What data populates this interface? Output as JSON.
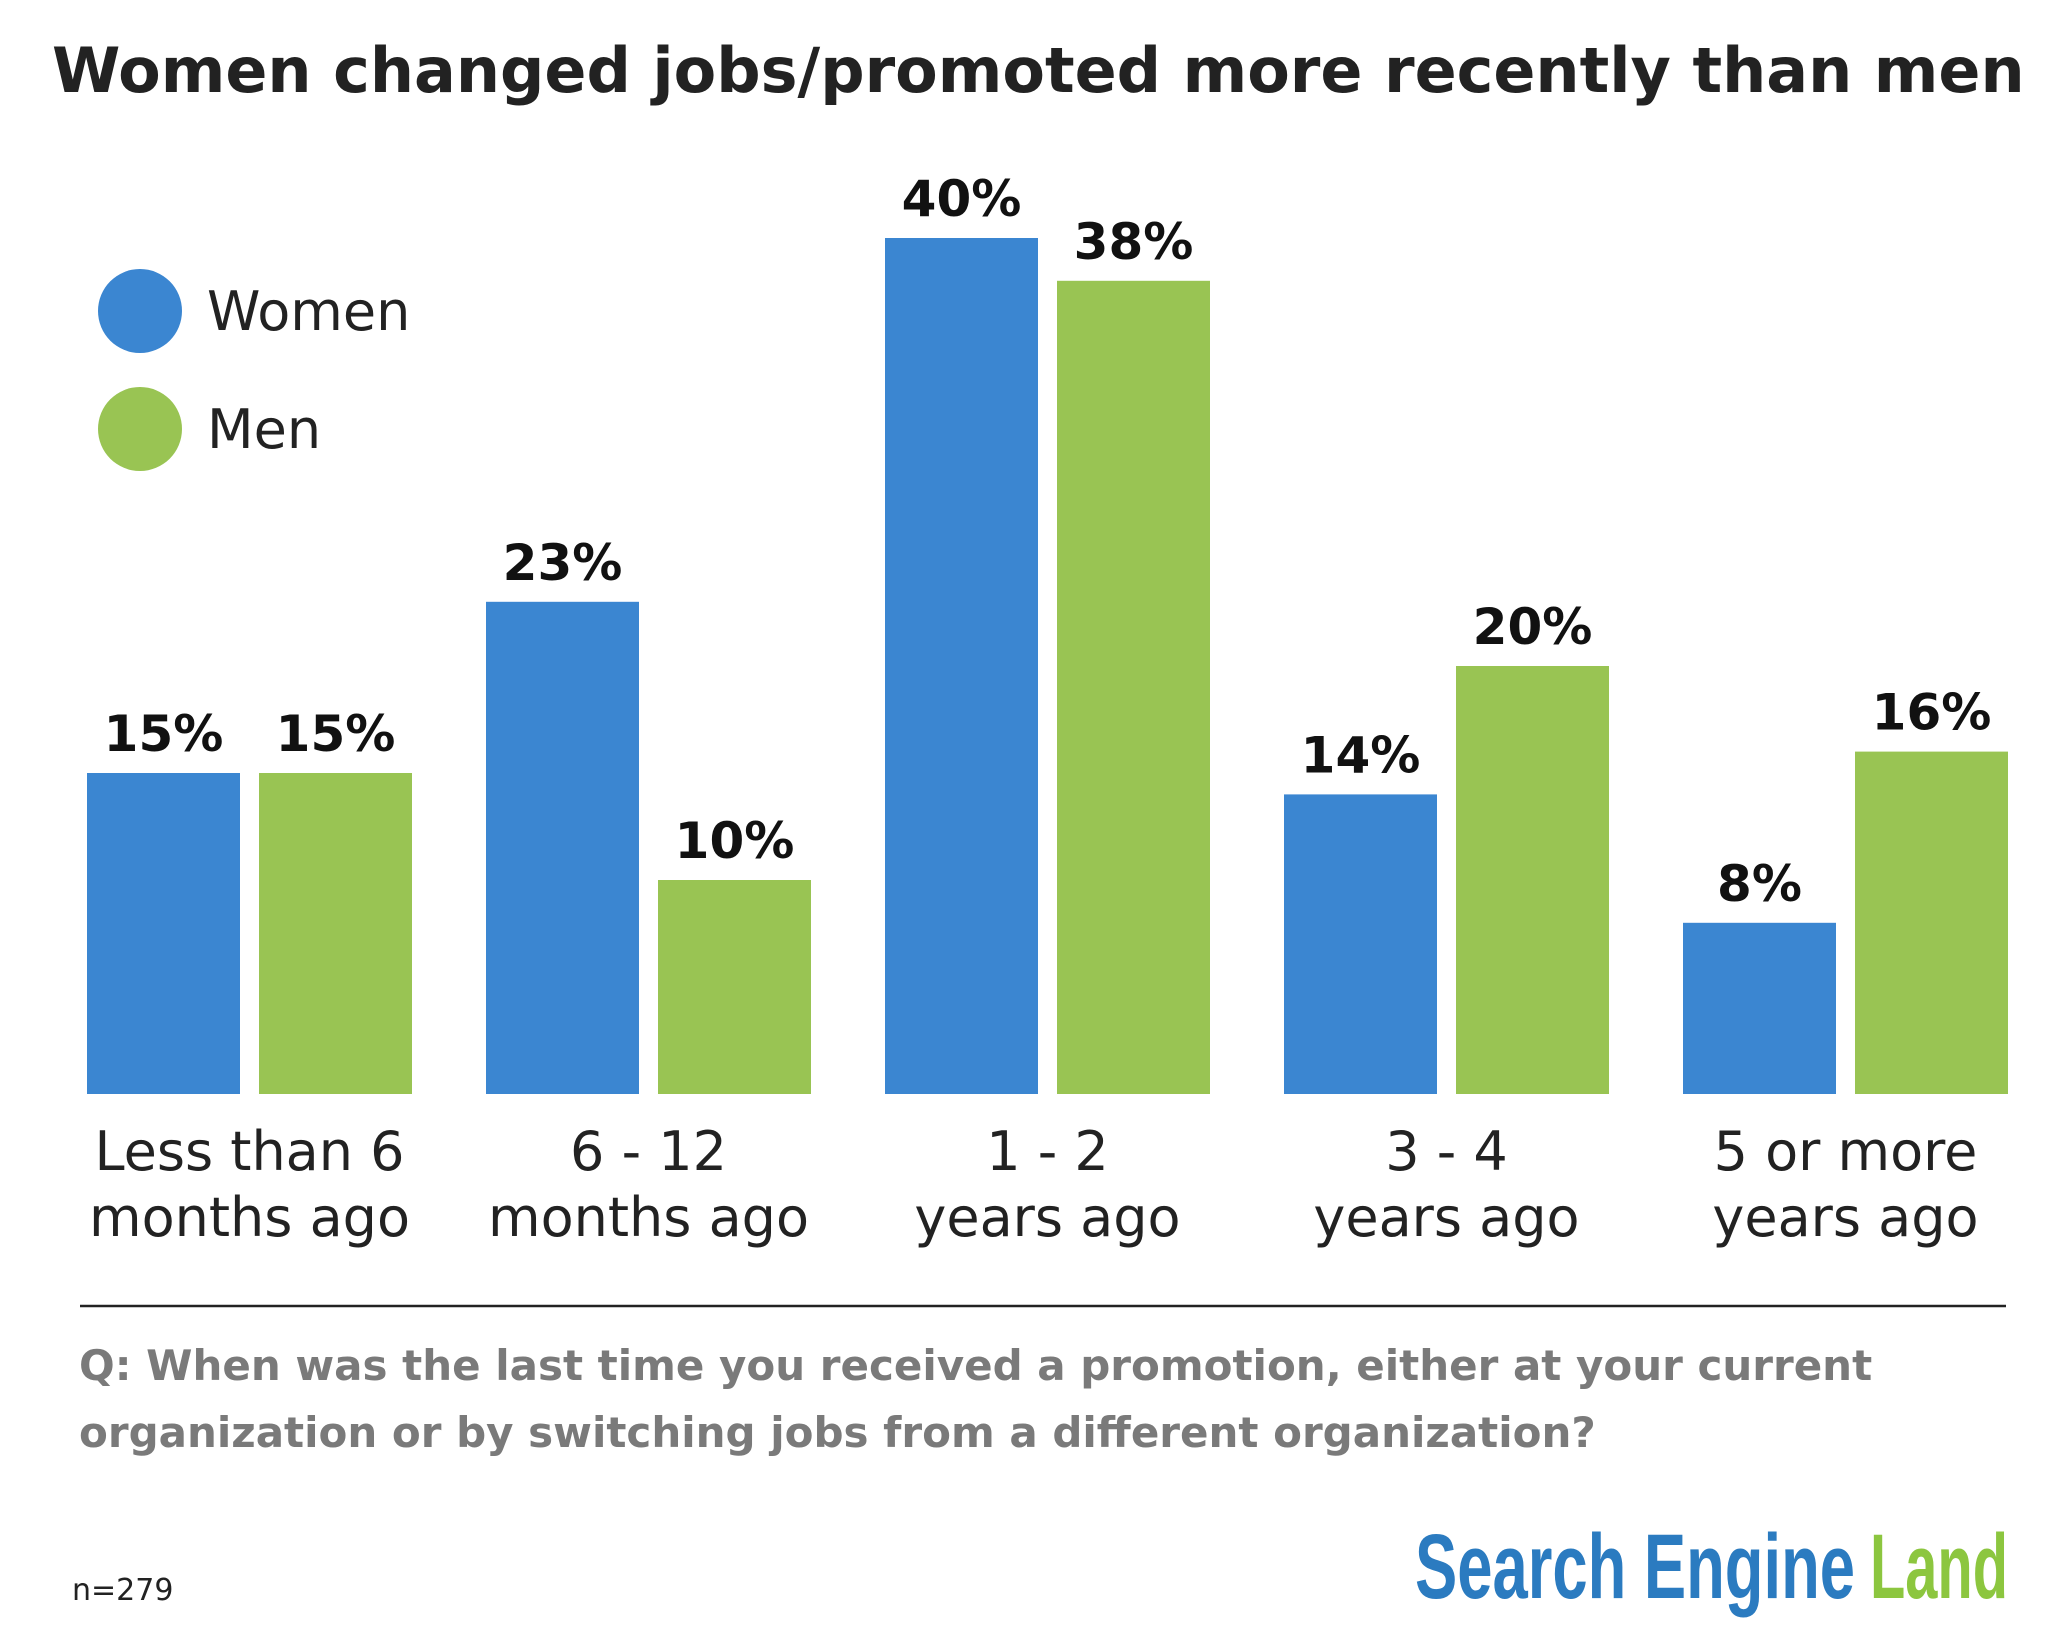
{
  "chart_data": {
    "type": "bar",
    "title": "Women changed jobs/promoted more recently than men",
    "categories": [
      [
        "Less than 6",
        "months ago"
      ],
      [
        "6 - 12",
        "months ago"
      ],
      [
        "1 - 2",
        "years ago"
      ],
      [
        "3 - 4",
        "years ago"
      ],
      [
        "5 or more",
        "years ago"
      ]
    ],
    "series": [
      {
        "name": "Women",
        "color": "#3b86d1",
        "values": [
          15,
          23,
          40,
          14,
          8
        ],
        "value_labels": [
          "15%",
          "23%",
          "40%",
          "14%",
          "8%"
        ]
      },
      {
        "name": "Men",
        "color": "#99c453",
        "values": [
          15,
          10,
          38,
          20,
          16
        ],
        "value_labels": [
          "15%",
          "10%",
          "38%",
          "20%",
          "16%"
        ]
      }
    ],
    "legend": "top-left"
  },
  "footnote": {
    "question": [
      "Q: When was the last time you received a promotion, either at your current",
      "organization or by switching jobs from a different organization?"
    ],
    "sample": "n=279"
  },
  "logo": [
    "Search Engine",
    "Land"
  ]
}
